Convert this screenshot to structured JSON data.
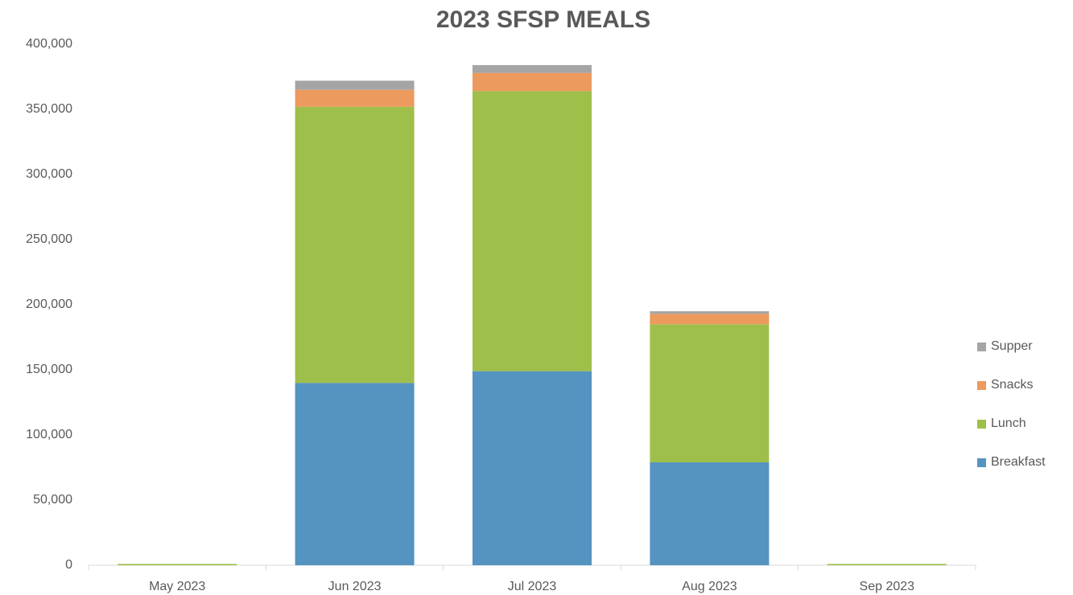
{
  "chart_data": {
    "type": "stacked_bar",
    "title": "2023 SFSP MEALS",
    "categories": [
      "May 2023",
      "Jun 2023",
      "Jul 2023",
      "Aug 2023",
      "Sep 2023"
    ],
    "series": [
      {
        "name": "Breakfast",
        "color": "#5593c0",
        "values": [
          0,
          140000,
          149000,
          79000,
          0
        ]
      },
      {
        "name": "Lunch",
        "color": "#9fbf4b",
        "values": [
          1000,
          212000,
          215000,
          106000,
          1000
        ]
      },
      {
        "name": "Snacks",
        "color": "#ec9a5d",
        "values": [
          0,
          13000,
          14000,
          8000,
          0
        ]
      },
      {
        "name": "Supper",
        "color": "#a5a5a5",
        "values": [
          0,
          7000,
          6000,
          2000,
          0
        ]
      }
    ],
    "ylim": [
      0,
      400000
    ],
    "yticks": [
      0,
      {
        "value": 50000,
        "label": "50,000"
      },
      {
        "value": 100000,
        "label": "100,000"
      },
      {
        "value": 150000,
        "label": "150,000"
      },
      {
        "value": 200000,
        "label": "200,000"
      },
      {
        "value": 250000,
        "label": "250,000"
      },
      {
        "value": 300000,
        "label": "300,000"
      },
      {
        "value": 350000,
        "label": "350,000"
      },
      {
        "value": 400000,
        "label": "400,000"
      }
    ],
    "legend": "right"
  }
}
